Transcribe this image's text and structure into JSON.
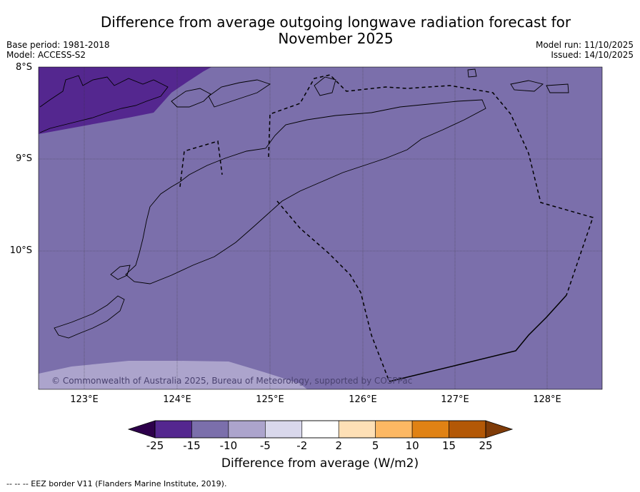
{
  "title_line1": "Difference from average outgoing longwave radiation forecast for",
  "title_line2": "November 2025",
  "base_period": "Base period: 1981-2018",
  "model": "Model: ACCESS-S2",
  "model_run": "Model run: 11/10/2025",
  "issued": "Issued: 14/10/2025",
  "copyright": "© Commonwealth of Australia 2025, Bureau of Meteorology, supported by COSPPac",
  "footnote": "--  --  -- EEZ border V11 (Flanders Marine Institute, 2019).",
  "colors": {
    "map_main": "#7b6fab",
    "map_dark": "#54278f",
    "map_light": "#aca4cc",
    "bins": [
      "#54278f",
      "#7b6fab",
      "#aca4cc",
      "#d9d8ec",
      "#ffffff",
      "#fee0b6",
      "#fdb863",
      "#e08214",
      "#b35806"
    ],
    "low_extend": "#2d004b",
    "high_extend": "#7f3b08"
  },
  "chart_data": {
    "type": "map",
    "variable": "Difference from average outgoing longwave radiation",
    "units": "W/m2",
    "longitude_range": [
      122.5,
      128.6
    ],
    "latitude_range": [
      -11.5,
      -8.0
    ],
    "x_ticks": [
      "123°E",
      "124°E",
      "125°E",
      "126°E",
      "127°E",
      "128°E"
    ],
    "y_ticks": [
      "8°S",
      "9°S",
      "10°S"
    ],
    "colorbar": {
      "label": "Difference from average (W/m2)",
      "boundaries": [
        "-25",
        "-15",
        "-10",
        "-5",
        "-2",
        "2",
        "5",
        "10",
        "15",
        "25"
      ],
      "extend": "both"
    },
    "regions": [
      {
        "value_range": "-15 to -10",
        "area": "most of map"
      },
      {
        "value_range": "-25 to -15",
        "area": "north-west corner"
      },
      {
        "value_range": "-10 to -5",
        "area": "south-west edge"
      }
    ]
  }
}
